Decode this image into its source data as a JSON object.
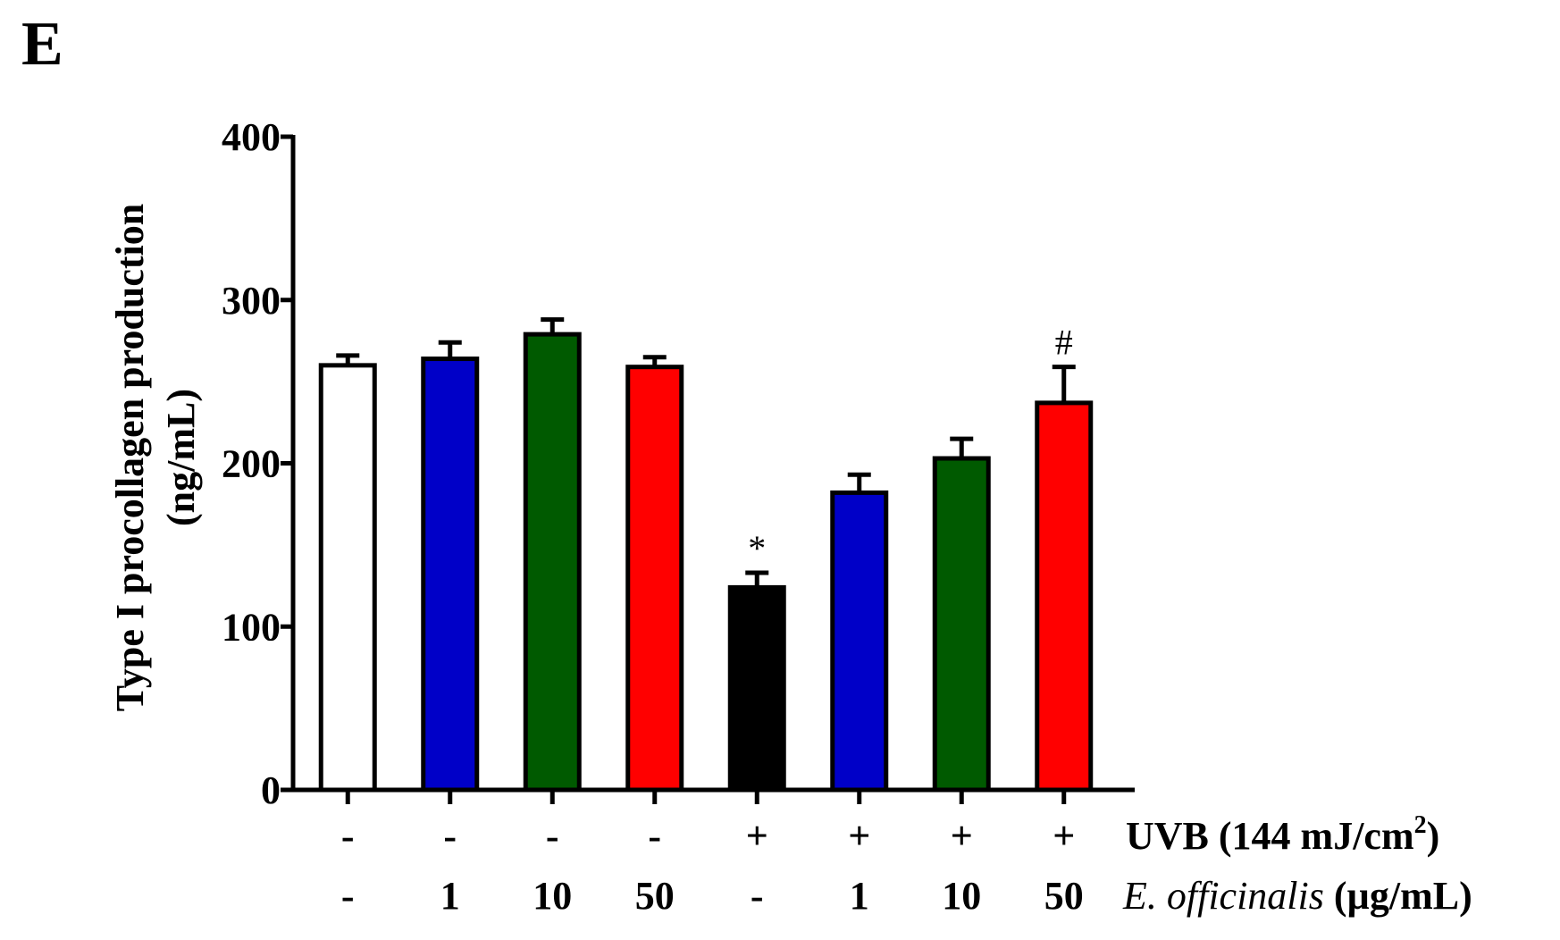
{
  "chart_data": {
    "type": "bar",
    "panel_label": "E",
    "ylabel_line1": "Type I procollagen production",
    "ylabel_line2": "(ng/mL)",
    "ylim": [
      0,
      400
    ],
    "yticks": [
      "0",
      "100",
      "200",
      "300",
      "400"
    ],
    "ytick_values": [
      0,
      100,
      200,
      300,
      400
    ],
    "uvb_label_main": "UVB (144 mJ/cm",
    "uvb_label_sup": "2",
    "uvb_label_end": ")",
    "extract_label_italic": "E. officinalis",
    "extract_label_units": " (µg/mL)",
    "bars": [
      {
        "uvb": "-",
        "conc": "-",
        "value": 260,
        "error": 6,
        "color": "#ffffff",
        "annotation": ""
      },
      {
        "uvb": "-",
        "conc": "1",
        "value": 264,
        "error": 10,
        "color": "#0000c8",
        "annotation": ""
      },
      {
        "uvb": "-",
        "conc": "10",
        "value": 279,
        "error": 9,
        "color": "#005a00",
        "annotation": ""
      },
      {
        "uvb": "-",
        "conc": "50",
        "value": 259,
        "error": 6,
        "color": "#ff0000",
        "annotation": ""
      },
      {
        "uvb": "+",
        "conc": "-",
        "value": 124,
        "error": 9,
        "color": "#000000",
        "annotation": "*"
      },
      {
        "uvb": "+",
        "conc": "1",
        "value": 182,
        "error": 11,
        "color": "#0000c8",
        "annotation": ""
      },
      {
        "uvb": "+",
        "conc": "10",
        "value": 203,
        "error": 12,
        "color": "#005a00",
        "annotation": ""
      },
      {
        "uvb": "+",
        "conc": "50",
        "value": 237,
        "error": 22,
        "color": "#ff0000",
        "annotation": "#"
      }
    ]
  }
}
